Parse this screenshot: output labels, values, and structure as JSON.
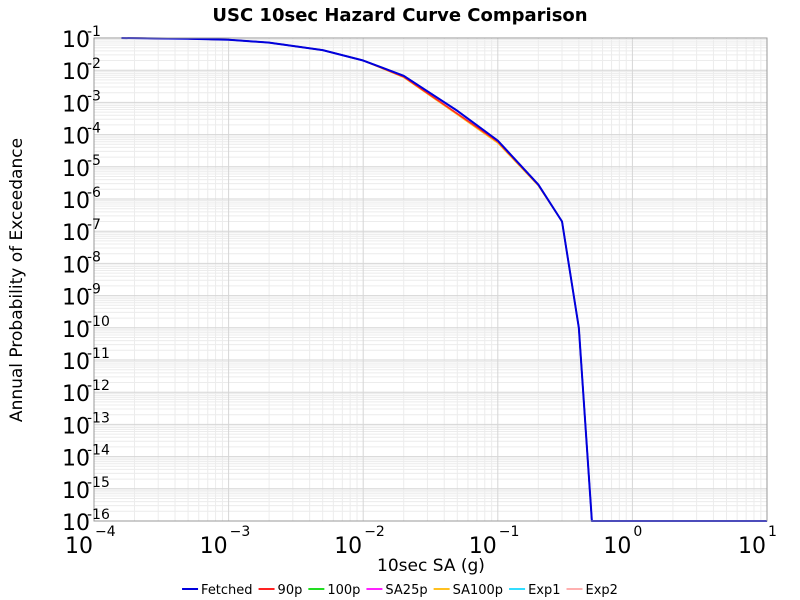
{
  "chart_data": {
    "type": "line",
    "title": "USC 10sec Hazard Curve Comparison",
    "xlabel": "10sec SA (g)",
    "ylabel": "Annual Probability of Exceedance",
    "x_scale": "log",
    "y_scale": "log",
    "xlim": [
      0.0001,
      10
    ],
    "ylim": [
      1e-16,
      0.1
    ],
    "grid": true,
    "legend_position": "bottom",
    "x_ticks": [
      {
        "base": "10",
        "exp": "−4",
        "value": 0.0001
      },
      {
        "base": "10",
        "exp": "−3",
        "value": 0.001
      },
      {
        "base": "10",
        "exp": "−2",
        "value": 0.01
      },
      {
        "base": "10",
        "exp": "−1",
        "value": 0.1
      },
      {
        "base": "10",
        "exp": "0",
        "value": 1
      },
      {
        "base": "10",
        "exp": "1",
        "value": 10
      }
    ],
    "y_ticks": [
      {
        "base": "10",
        "exp": "-1",
        "value": 0.1
      },
      {
        "base": "10",
        "exp": "-2",
        "value": 0.01
      },
      {
        "base": "10",
        "exp": "-3",
        "value": 0.001
      },
      {
        "base": "10",
        "exp": "-4",
        "value": 0.0001
      },
      {
        "base": "10",
        "exp": "-5",
        "value": 1e-05
      },
      {
        "base": "10",
        "exp": "-6",
        "value": 1e-06
      },
      {
        "base": "10",
        "exp": "-7",
        "value": 1e-07
      },
      {
        "base": "10",
        "exp": "-8",
        "value": 1e-08
      },
      {
        "base": "10",
        "exp": "-9",
        "value": 1e-09
      },
      {
        "base": "10",
        "exp": "-10",
        "value": 1e-10
      },
      {
        "base": "10",
        "exp": "-11",
        "value": 1e-11
      },
      {
        "base": "10",
        "exp": "-12",
        "value": 1e-12
      },
      {
        "base": "10",
        "exp": "-13",
        "value": 1e-13
      },
      {
        "base": "10",
        "exp": "-14",
        "value": 1e-14
      },
      {
        "base": "10",
        "exp": "-15",
        "value": 1e-15
      },
      {
        "base": "10",
        "exp": "-16",
        "value": 1e-16
      }
    ],
    "series": [
      {
        "name": "Fetched",
        "color": "#0000dd",
        "width": 2,
        "x": [
          0.00016,
          0.0005,
          0.001,
          0.002,
          0.005,
          0.01,
          0.02,
          0.05,
          0.1,
          0.2,
          0.3,
          0.4,
          0.5,
          10
        ],
        "y": [
          0.1,
          0.095,
          0.088,
          0.072,
          0.042,
          0.02,
          0.0067,
          0.00055,
          6.5e-05,
          2.8e-06,
          2e-07,
          1e-10,
          1e-16,
          1e-16
        ]
      },
      {
        "name": "90p",
        "color": "#ff2222",
        "width": 1.5,
        "x": [
          0.00016,
          0.0005,
          0.001,
          0.002,
          0.005,
          0.01,
          0.02,
          0.05,
          0.1,
          0.2,
          0.3,
          0.4,
          0.5,
          10
        ],
        "y": [
          0.1,
          0.095,
          0.088,
          0.072,
          0.042,
          0.02,
          0.0062,
          0.00045,
          6e-05,
          2.7e-06,
          2e-07,
          1e-10,
          1e-16,
          1e-16
        ]
      },
      {
        "name": "100p",
        "color": "#22dd22",
        "width": 1.5,
        "x": [
          0.00016,
          0.0005,
          0.001,
          0.002,
          0.005,
          0.01,
          0.02,
          0.05,
          0.1,
          0.2,
          0.3,
          0.4,
          0.5,
          10
        ],
        "y": [
          0.1,
          0.095,
          0.088,
          0.072,
          0.042,
          0.02,
          0.0067,
          0.00055,
          6.5e-05,
          2.8e-06,
          2e-07,
          1e-10,
          1e-16,
          1e-16
        ]
      },
      {
        "name": "SA25p",
        "color": "#ff22ff",
        "width": 1.5,
        "x": [
          0.00016,
          0.0005,
          0.001,
          0.002,
          0.005,
          0.01,
          0.02,
          0.05,
          0.1,
          0.2,
          0.3,
          0.4,
          0.5,
          10
        ],
        "y": [
          0.1,
          0.095,
          0.088,
          0.072,
          0.042,
          0.02,
          0.0067,
          0.00055,
          6.5e-05,
          2.8e-06,
          2e-07,
          1e-10,
          1e-16,
          1e-16
        ]
      },
      {
        "name": "SA100p",
        "color": "#ffc020",
        "width": 1.5,
        "x": [
          0.00016,
          0.0005,
          0.001,
          0.002,
          0.005,
          0.01,
          0.02,
          0.05,
          0.1,
          0.2,
          0.3,
          0.4,
          0.5,
          10
        ],
        "y": [
          0.1,
          0.095,
          0.088,
          0.072,
          0.042,
          0.02,
          0.006,
          0.00042,
          5.5e-05,
          2.6e-06,
          2e-07,
          1e-10,
          1e-16,
          1e-16
        ]
      },
      {
        "name": "Exp1",
        "color": "#33ddff",
        "width": 1.5,
        "x": [
          0.00016,
          0.0005,
          0.001,
          0.002,
          0.005,
          0.01,
          0.02,
          0.05,
          0.1,
          0.2,
          0.3,
          0.4,
          0.5,
          10
        ],
        "y": [
          0.1,
          0.095,
          0.088,
          0.072,
          0.042,
          0.02,
          0.0067,
          0.00055,
          6.5e-05,
          2.8e-06,
          2e-07,
          1e-10,
          1e-16,
          1e-16
        ]
      },
      {
        "name": "Exp2",
        "color": "#ffb0b0",
        "width": 1.5,
        "x": [
          0.00016,
          0.0005,
          0.001,
          0.002,
          0.005,
          0.01,
          0.02,
          0.05,
          0.1,
          0.2,
          0.3,
          0.4,
          0.5,
          10
        ],
        "y": [
          0.1,
          0.095,
          0.088,
          0.072,
          0.042,
          0.02,
          0.0067,
          0.00055,
          6.5e-05,
          2.8e-06,
          2e-07,
          1e-10,
          1e-16,
          1e-16
        ]
      }
    ],
    "draw_order": [
      4,
      3,
      2,
      5,
      6,
      1,
      0
    ]
  }
}
